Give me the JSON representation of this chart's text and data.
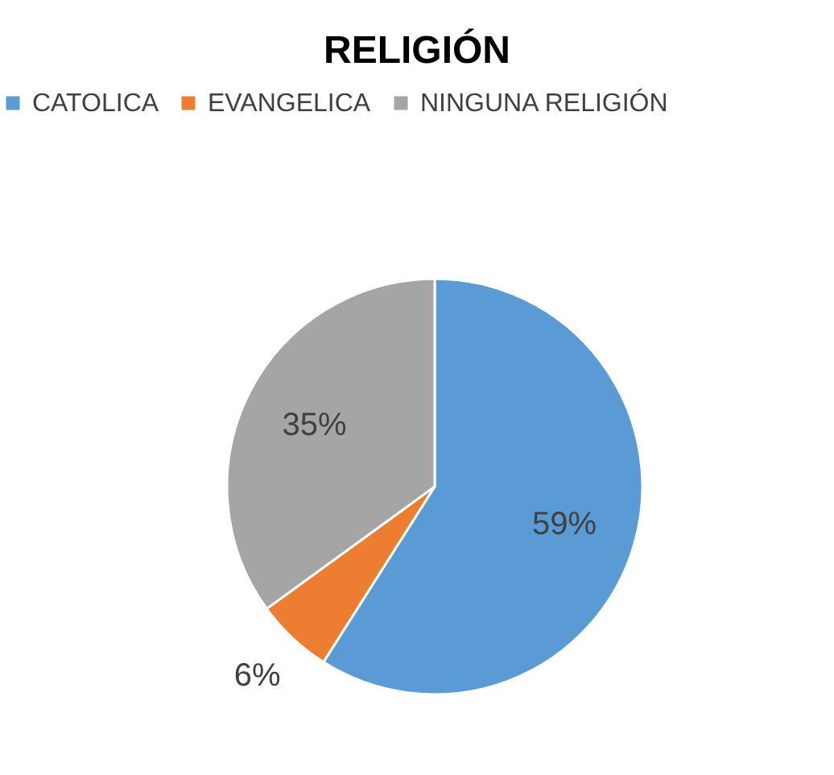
{
  "chart_data": {
    "type": "pie",
    "title": "RELIGIÓN",
    "categories": [
      "CATOLICA",
      "EVANGELICA",
      "NINGUNA RELIGIÓN"
    ],
    "values": [
      59,
      6,
      35
    ],
    "colors": [
      "#5b9bd5",
      "#ed7d31",
      "#a5a5a5"
    ],
    "value_labels": [
      "59%",
      "6%",
      "35%"
    ],
    "legend": "top"
  }
}
